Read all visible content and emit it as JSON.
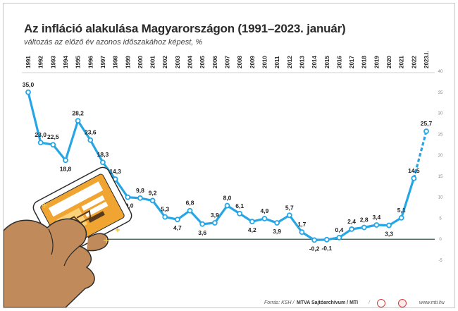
{
  "title": "Az infláció alakulása Magyarországon (1991–2023. január)",
  "subtitle": "változás az előző év azonos időszakához képest, %",
  "chart_data": {
    "type": "line",
    "categories": [
      "1991",
      "1992",
      "1993",
      "1994",
      "1995",
      "1996",
      "1997",
      "1998",
      "1999",
      "2000",
      "2001",
      "2002",
      "2003",
      "2004",
      "2005",
      "2006",
      "2007",
      "2008",
      "2009",
      "2010",
      "2011",
      "2012",
      "2013",
      "2014",
      "2015",
      "2016",
      "2017",
      "2018",
      "2019",
      "2020",
      "2021",
      "2022",
      "2023.I."
    ],
    "values": [
      35.0,
      23.0,
      22.5,
      18.8,
      28.2,
      23.6,
      18.3,
      14.3,
      10.0,
      9.8,
      9.2,
      5.3,
      4.7,
      6.8,
      3.6,
      3.9,
      8.0,
      6.1,
      4.2,
      4.9,
      3.9,
      5.7,
      1.7,
      -0.2,
      -0.1,
      0.4,
      2.4,
      2.8,
      3.4,
      3.3,
      5.1,
      14.5,
      25.7
    ],
    "value_labels": [
      "35,0",
      "23,0",
      "22,5",
      "18,8",
      "28,2",
      "23,6",
      "18,3",
      "14,3",
      "10,0",
      "9,8",
      "9,2",
      "5,3",
      "4,7",
      "6,8",
      "3,6",
      "3,9",
      "8,0",
      "6,1",
      "4,2",
      "4,9",
      "3,9",
      "5,7",
      "1,7",
      "-0,2",
      "-0,1",
      "0,4",
      "2,4",
      "2,8",
      "3,4",
      "3,3",
      "5,1",
      "14,5",
      "25,7"
    ],
    "ylim": [
      -5,
      40
    ],
    "yticks": [
      -5,
      0,
      5,
      10,
      15,
      20,
      25,
      30,
      35,
      40
    ],
    "xlabel": "",
    "ylabel": "",
    "grid": false,
    "dashed_last_segment": true,
    "line_color": "#27a6e5",
    "marker_fill": "#ffffff",
    "zero_line_color": "#1f5c42",
    "separator_color": "#d0d0d0"
  },
  "footer": {
    "source": "Forrás: KSH /",
    "credit": "MTVA Sajtóarchívum / MTI",
    "separator": "/",
    "website": "www.mti.hu"
  },
  "colors": {
    "title": "#2a2a2a",
    "hand": "#c08a5b",
    "hand_outline": "#2b2b2b",
    "phone_body": "#ffffff",
    "phone_screen_accent": "#f0a431"
  }
}
